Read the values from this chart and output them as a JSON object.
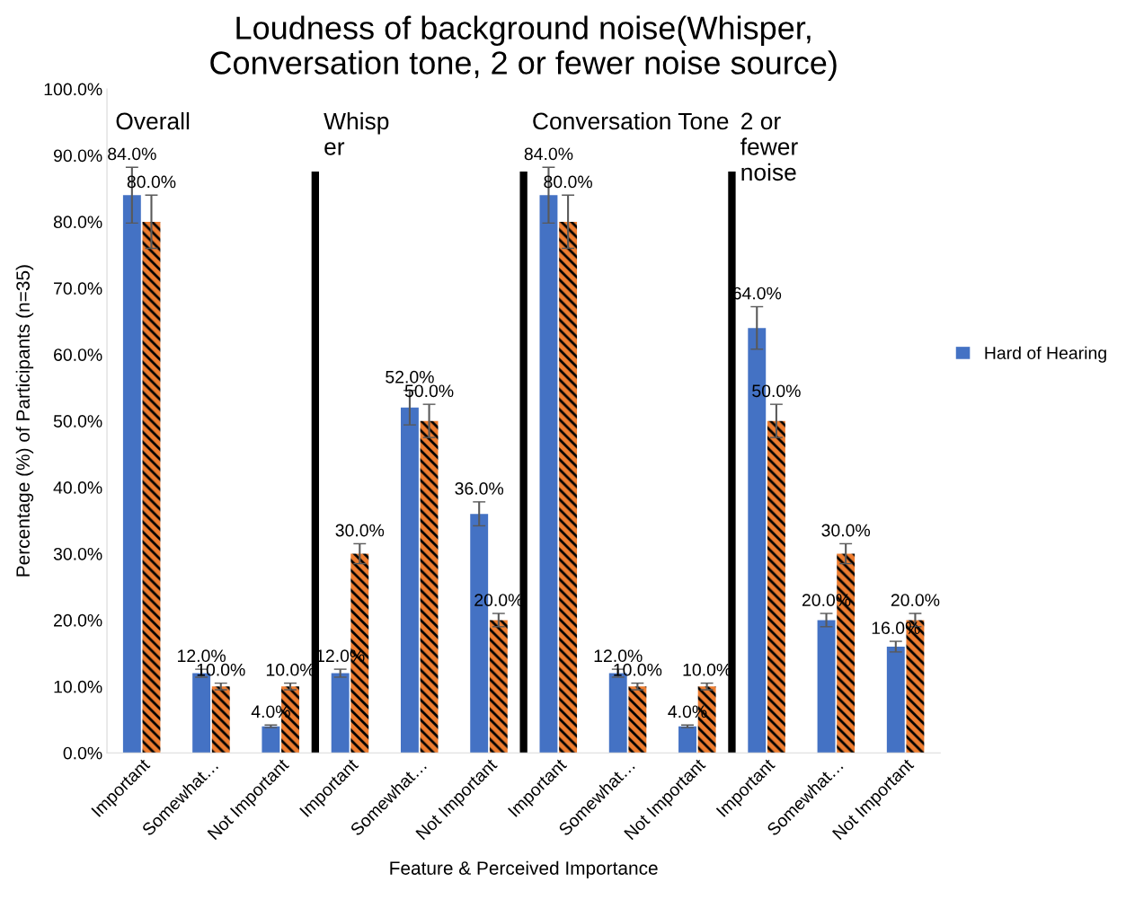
{
  "chart_data": {
    "type": "bar",
    "title": "Loudness of background noise(Whisper,\nConversation tone, 2 or fewer noise source)",
    "xlabel": "Feature & Perceived Importance",
    "ylabel": "Percentage (%) of Participants (n=35)",
    "categories": [
      "Important",
      "Somewhat…",
      "Not Important",
      "Important",
      "Somewhat…",
      "Not Important",
      "Important",
      "Somewhat…",
      "Not Important",
      "Important",
      "Somewhat…",
      "Not Important"
    ],
    "series": [
      {
        "name": "Hard of Hearing",
        "color": "#4472c4",
        "values": [
          84,
          12,
          4,
          12,
          52,
          36,
          84,
          12,
          4,
          64,
          20,
          16
        ],
        "errors": [
          4.2,
          0.6,
          0.2,
          0.6,
          2.6,
          1.8,
          4.2,
          0.6,
          0.2,
          3.2,
          1.0,
          0.8
        ],
        "value_labels": [
          "84.0%",
          "12.0%",
          "4.0%",
          "12.0%",
          "52.0%",
          "36.0%",
          "84.0%",
          "12.0%",
          "4.0%",
          "64.0%",
          "20.0%",
          "16.0%"
        ]
      },
      {
        "color": "#ed7d31",
        "values": [
          80,
          10,
          10,
          30,
          50,
          20,
          80,
          10,
          10,
          50,
          30,
          20
        ],
        "errors": [
          4,
          0.5,
          0.5,
          1.5,
          2.5,
          1,
          4,
          0.5,
          0.5,
          2.5,
          1.5,
          1
        ],
        "value_labels": [
          "80.0%",
          "10.0%",
          "10.0%",
          "30.0%",
          "50.0%",
          "20.0%",
          "80.0%",
          "10.0%",
          "10.0%",
          "50.0%",
          "30.0%",
          "20.0%"
        ]
      }
    ],
    "ylim": [
      0,
      100
    ],
    "yticks": [
      {
        "value": 0,
        "label": "0.0%"
      },
      {
        "value": 10,
        "label": "10.0%"
      },
      {
        "value": 20,
        "label": "20.0%"
      },
      {
        "value": 30,
        "label": "30.0%"
      },
      {
        "value": 40,
        "label": "40.0%"
      },
      {
        "value": 50,
        "label": "50.0%"
      },
      {
        "value": 60,
        "label": "60.0%"
      },
      {
        "value": 70,
        "label": "70.0%"
      },
      {
        "value": 80,
        "label": "80.0%"
      },
      {
        "value": 90,
        "label": "90.0%"
      },
      {
        "value": 100,
        "label": "100.0%"
      }
    ],
    "annotations": [
      "Overall",
      "Whisp\ner",
      "Conversation Tone",
      "2 or\nfewer\nnoise"
    ],
    "legend": "right",
    "grid": false
  }
}
